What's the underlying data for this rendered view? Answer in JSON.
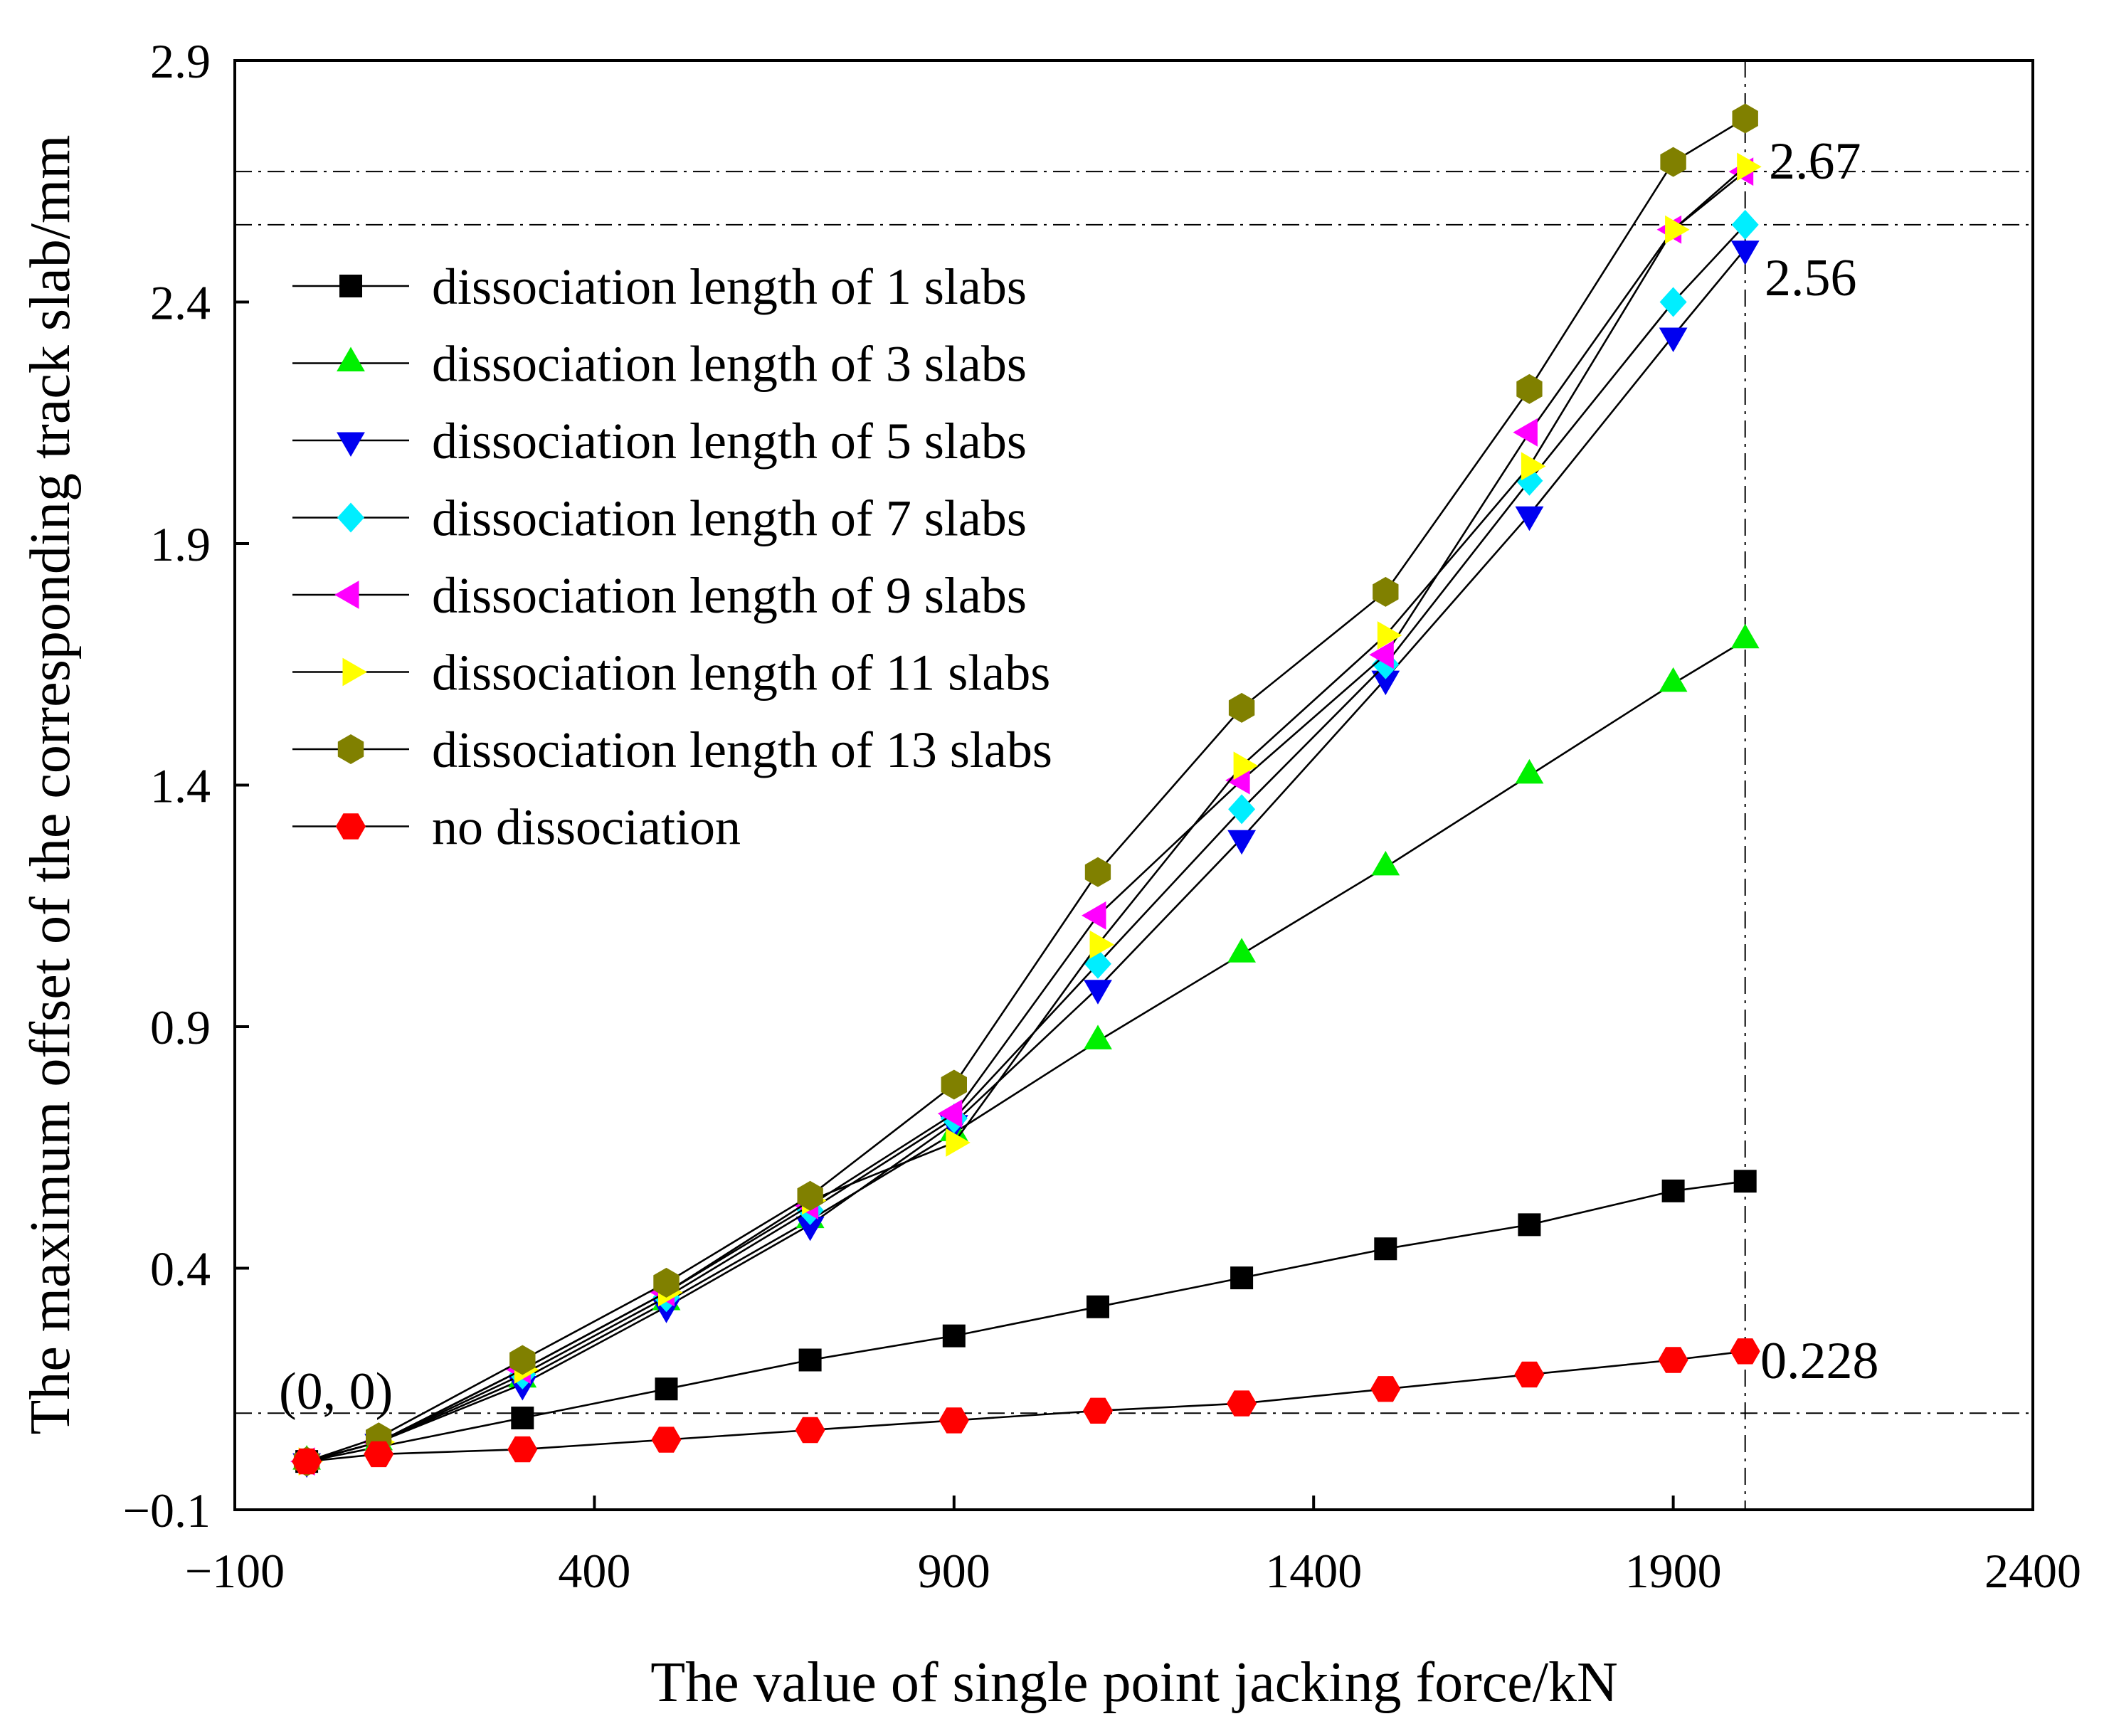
{
  "chart_data": {
    "type": "line",
    "title": "",
    "xlabel": "The value of single point jacking force/kN",
    "ylabel": "The maximum offset of the corresponding track slab/mm",
    "xlim": [
      -100,
      2400
    ],
    "ylim": [
      -0.1,
      2.9
    ],
    "xticks": [
      -100,
      400,
      900,
      1400,
      1900,
      2400
    ],
    "xtick_labels": [
      "−100",
      "400",
      "900",
      "1400",
      "1900",
      "2400"
    ],
    "yticks": [
      -0.1,
      0.4,
      0.9,
      1.4,
      1.9,
      2.4,
      2.9
    ],
    "ytick_labels": [
      "−0.1",
      "0.4",
      "0.9",
      "1.4",
      "1.9",
      "2.4",
      "2.9"
    ],
    "grid": false,
    "legend_position": "top-left",
    "line_color": "#000000",
    "x": [
      0,
      100,
      300,
      500,
      700,
      900,
      1100,
      1300,
      1500,
      1700,
      1900,
      2000
    ],
    "series": [
      {
        "name": "dissociation length of 1 slabs",
        "marker": "square",
        "color": "#000000",
        "values": [
          0,
          0.03,
          0.09,
          0.15,
          0.21,
          0.26,
          0.32,
          0.38,
          0.44,
          0.49,
          0.56,
          0.58
        ]
      },
      {
        "name": "dissociation length of 3 slabs",
        "marker": "triangle-up",
        "color": "#00f000",
        "values": [
          0,
          0.04,
          0.17,
          0.33,
          0.5,
          0.68,
          0.87,
          1.05,
          1.23,
          1.42,
          1.61,
          1.7
        ]
      },
      {
        "name": "dissociation length of 5 slabs",
        "marker": "triangle-down",
        "color": "#0000f0",
        "values": [
          0,
          0.04,
          0.16,
          0.32,
          0.49,
          0.7,
          0.98,
          1.29,
          1.62,
          1.96,
          2.33,
          2.51
        ]
      },
      {
        "name": "dissociation length of 7 slabs",
        "marker": "diamond",
        "color": "#00eeff",
        "values": [
          0,
          0.04,
          0.18,
          0.34,
          0.52,
          0.71,
          1.03,
          1.35,
          1.65,
          2.03,
          2.4,
          2.56
        ]
      },
      {
        "name": "dissociation length of 9 slabs",
        "marker": "triangle-left",
        "color": "#ff00ff",
        "values": [
          0,
          0.04,
          0.19,
          0.35,
          0.53,
          0.72,
          1.13,
          1.41,
          1.67,
          2.13,
          2.55,
          2.67
        ]
      },
      {
        "name": "dissociation length of 11 slabs",
        "marker": "triangle-right",
        "color": "#ffff00",
        "values": [
          0,
          0.04,
          0.19,
          0.35,
          0.54,
          0.66,
          1.07,
          1.44,
          1.71,
          2.06,
          2.55,
          2.68
        ]
      },
      {
        "name": "dissociation length of 13 slabs",
        "marker": "hexagon",
        "color": "#808000",
        "values": [
          0,
          0.05,
          0.21,
          0.37,
          0.55,
          0.78,
          1.22,
          1.56,
          1.8,
          2.22,
          2.69,
          2.78
        ]
      },
      {
        "name": "no dissociation",
        "marker": "hexagon-flat",
        "color": "#ff0000",
        "values": [
          0,
          0.015,
          0.025,
          0.045,
          0.065,
          0.085,
          0.105,
          0.12,
          0.15,
          0.18,
          0.21,
          0.228
        ]
      }
    ],
    "reference_lines": {
      "horizontal": [
        2.67,
        2.56,
        0.1
      ],
      "vertical": [
        2000
      ]
    },
    "annotations": [
      {
        "text": "(0, 0)"
      },
      {
        "text": "2.67"
      },
      {
        "text": "2.56"
      },
      {
        "text": "0.228"
      }
    ]
  }
}
